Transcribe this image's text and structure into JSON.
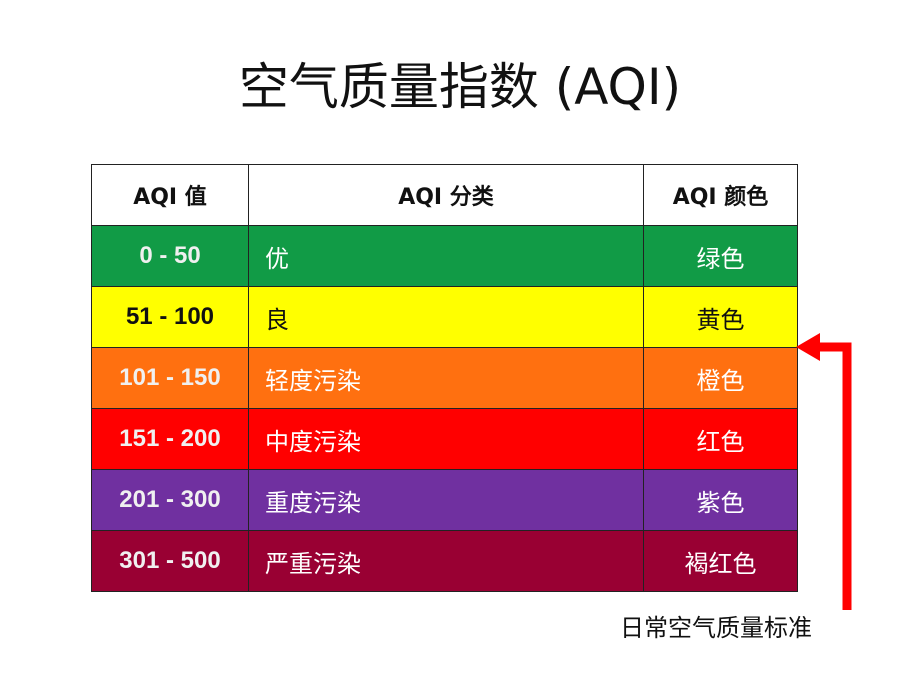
{
  "title": "空气质量指数 (AQI)",
  "table": {
    "headers": [
      "AQI 值",
      "AQI 分类",
      "AQI 颜色"
    ],
    "rows": [
      {
        "range": "0 - 50",
        "category": "优",
        "color_name": "绿色",
        "bg": "#119b46",
        "fg": "#ffffff",
        "range_fg": "#f0f0f0"
      },
      {
        "range": "51 - 100",
        "category": "良",
        "color_name": "黄色",
        "bg": "#ffff00",
        "fg": "#111111",
        "range_fg": "#111111"
      },
      {
        "range": "101 - 150",
        "category": "轻度污染",
        "color_name": "橙色",
        "bg": "#ff7010",
        "fg": "#ffffff",
        "range_fg": "#f0f0f0"
      },
      {
        "range": "151 - 200",
        "category": "中度污染",
        "color_name": "红色",
        "bg": "#ff0000",
        "fg": "#ffffff",
        "range_fg": "#f0f0f0"
      },
      {
        "range": "201 - 300",
        "category": "重度污染",
        "color_name": "紫色",
        "bg": "#7030a0",
        "fg": "#ffffff",
        "range_fg": "#f0f0f0"
      },
      {
        "range": "301 - 500",
        "category": "严重污染",
        "color_name": "褐红色",
        "bg": "#990033",
        "fg": "#ffffff",
        "range_fg": "#f0f0f0"
      }
    ]
  },
  "arrow": {
    "caption": "日常空气质量标准",
    "color": "#ff0000"
  }
}
